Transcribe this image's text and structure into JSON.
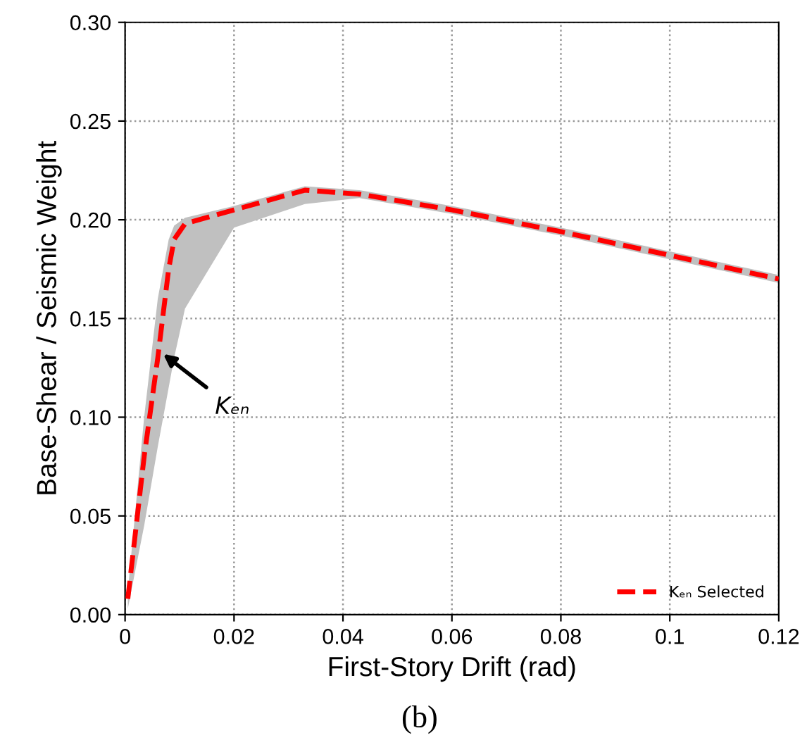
{
  "chart_data": {
    "type": "line",
    "xlabel": "First-Story Drift (rad)",
    "ylabel": "Base-Shear / Seismic Weight",
    "xlim": [
      0,
      0.12
    ],
    "ylim": [
      0,
      0.3
    ],
    "xticks": [
      0,
      0.02,
      0.04,
      0.06,
      0.08,
      0.1,
      0.12
    ],
    "yticks": [
      {
        "value": 0,
        "label": "0.00"
      },
      {
        "value": 0.05,
        "label": "0.05"
      },
      {
        "value": 0.1,
        "label": "0.10"
      },
      {
        "value": 0.15,
        "label": "0.15"
      },
      {
        "value": 0.2,
        "label": "0.20"
      },
      {
        "value": 0.25,
        "label": "0.25"
      },
      {
        "value": 0.3,
        "label": "0.30"
      }
    ],
    "grid": true,
    "legend": "bottom right",
    "marker": "none",
    "series": [
      {
        "name": "Kₑₙ Selected",
        "color": "#ff0000",
        "line_style": "dashed",
        "x": [
          0.0005,
          0.0035,
          0.006,
          0.008,
          0.009,
          0.011,
          0.02,
          0.033,
          0.043,
          0.06,
          0.08,
          0.1,
          0.12
        ],
        "values": [
          0.008,
          0.08,
          0.13,
          0.175,
          0.19,
          0.198,
          0.205,
          0.215,
          0.213,
          0.205,
          0.194,
          0.182,
          0.17
        ],
        "upper": [
          0.012,
          0.1,
          0.16,
          0.19,
          0.197,
          0.201,
          0.207,
          0.217,
          0.215,
          0.207,
          0.196,
          0.184,
          0.172
        ],
        "lower": [
          0.003,
          0.045,
          0.085,
          0.115,
          0.13,
          0.155,
          0.196,
          0.208,
          0.211,
          0.203,
          0.192,
          0.18,
          0.168
        ]
      }
    ],
    "annotations": [
      {
        "text": "Kₑₙ",
        "x": 0.007,
        "y": 0.132
      },
      "(b)"
    ]
  }
}
